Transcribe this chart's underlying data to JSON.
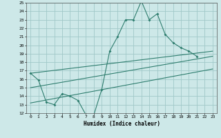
{
  "bg_color": "#cde8e8",
  "grid_color": "#a0c8c8",
  "line_color": "#2e7d6e",
  "xlabel": "Humidex (Indice chaleur)",
  "ylim": [
    12,
    25
  ],
  "xlim": [
    -0.5,
    23.5
  ],
  "yticks": [
    12,
    13,
    14,
    15,
    16,
    17,
    18,
    19,
    20,
    21,
    22,
    23,
    24,
    25
  ],
  "xticks": [
    0,
    1,
    2,
    3,
    4,
    5,
    6,
    7,
    8,
    9,
    10,
    11,
    12,
    13,
    14,
    15,
    16,
    17,
    18,
    19,
    20,
    21,
    22,
    23
  ],
  "curve1_x": [
    0,
    1,
    2,
    3,
    4,
    5,
    6,
    7,
    8,
    9,
    10,
    11,
    12,
    13,
    14,
    15,
    16,
    17,
    18,
    19,
    20,
    21
  ],
  "curve1_y": [
    16.7,
    15.9,
    13.3,
    13.0,
    14.3,
    14.0,
    13.5,
    11.8,
    11.8,
    14.8,
    19.3,
    21.0,
    23.0,
    23.0,
    25.2,
    23.0,
    23.7,
    21.3,
    20.3,
    19.7,
    19.3,
    18.7
  ],
  "line1_x": [
    0,
    23
  ],
  "line1_y": [
    16.7,
    19.3
  ],
  "line2_x": [
    0,
    23
  ],
  "line2_y": [
    15.0,
    18.7
  ],
  "line3_x": [
    0,
    23
  ],
  "line3_y": [
    13.2,
    17.2
  ]
}
